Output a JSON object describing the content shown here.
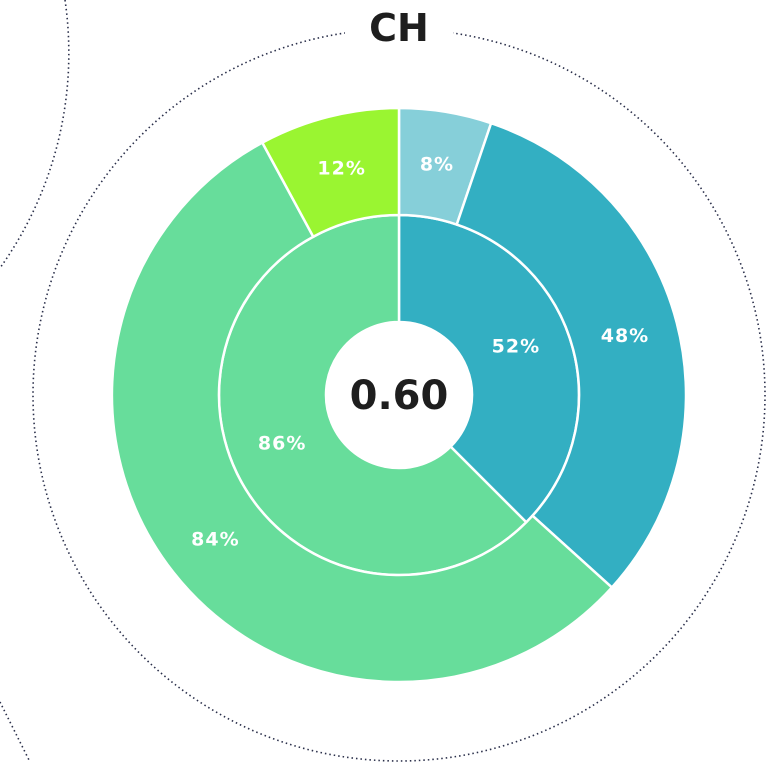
{
  "chart_data": {
    "type": "sunburst",
    "title": "CH",
    "center_label": "0.60",
    "rings": [
      {
        "sizes": [
          37.5,
          62.5
        ],
        "values": [
          52,
          86
        ],
        "value_labels": [
          "52%",
          "86%"
        ],
        "colors": [
          "#33afc2",
          "#67dd9b"
        ]
      },
      {
        "sizes": [
          5.2,
          31.5,
          55.4,
          7.9
        ],
        "values": [
          8,
          48,
          84,
          12
        ],
        "value_labels": [
          "8%",
          "48%",
          "84%",
          "12%"
        ],
        "colors": [
          "#86cfd9",
          "#33afc2",
          "#67dd9b",
          "#9af531"
        ]
      }
    ]
  }
}
